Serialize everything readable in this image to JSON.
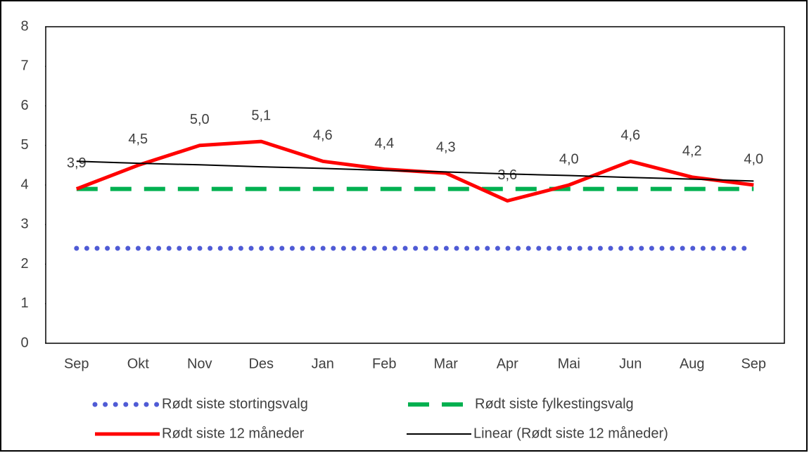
{
  "chart_data": {
    "type": "line",
    "categories": [
      "Sep",
      "Okt",
      "Nov",
      "Des",
      "Jan",
      "Feb",
      "Mar",
      "Apr",
      "Mai",
      "Jun",
      "Aug",
      "Sep"
    ],
    "series": [
      {
        "name": "Rødt siste stortingsvalg",
        "color": "#4f5bd5",
        "style": "dotted",
        "values": [
          2.4,
          2.4,
          2.4,
          2.4,
          2.4,
          2.4,
          2.4,
          2.4,
          2.4,
          2.4,
          2.4,
          2.4
        ]
      },
      {
        "name": "Rødt siste fylkestingsvalg",
        "color": "#00b050",
        "style": "dashed",
        "values": [
          3.9,
          3.9,
          3.9,
          3.9,
          3.9,
          3.9,
          3.9,
          3.9,
          3.9,
          3.9,
          3.9,
          3.9
        ]
      },
      {
        "name": "Rødt siste 12 måneder",
        "color": "#ff0000",
        "style": "solid",
        "values": [
          3.9,
          4.5,
          5.0,
          5.1,
          4.6,
          4.4,
          4.3,
          3.6,
          4.0,
          4.6,
          4.2,
          4.0
        ],
        "value_labels": [
          "3,9",
          "4,5",
          "5,0",
          "5,1",
          "4,6",
          "4,4",
          "4,3",
          "3,6",
          "4,0",
          "4,6",
          "4,2",
          "4,0"
        ]
      },
      {
        "name": "Linear (Rødt siste 12 måneder)",
        "color": "#000000",
        "style": "thin",
        "values": [
          4.6,
          4.55,
          4.51,
          4.46,
          4.42,
          4.37,
          4.33,
          4.28,
          4.24,
          4.19,
          4.15,
          4.1
        ]
      }
    ],
    "ylim": [
      0,
      8
    ],
    "yticks": [
      0,
      1,
      2,
      3,
      4,
      5,
      6,
      7,
      8
    ],
    "grid": false,
    "legend": "bottom"
  }
}
